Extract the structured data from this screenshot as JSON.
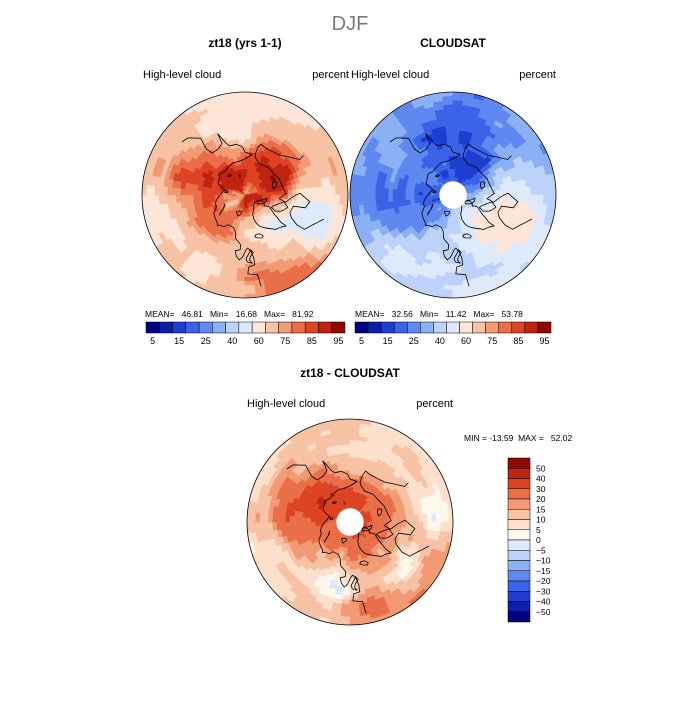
{
  "figure": {
    "title": "DJF"
  },
  "palette": {
    "abs": [
      "#000080",
      "#0d1fa6",
      "#1e3ed2",
      "#3a63e8",
      "#5f88f0",
      "#8cb0f5",
      "#bcd2fa",
      "#deeafc",
      "#fde6d8",
      "#f8c3a5",
      "#f29a73",
      "#ea6e48",
      "#dc4424",
      "#c02410",
      "#8c0c05"
    ],
    "diff": [
      "#000080",
      "#0d1fa6",
      "#1e3ed2",
      "#3a63e8",
      "#5f88f0",
      "#8cb0f5",
      "#bcd2fa",
      "#deeafc",
      "#fff6ec",
      "#fde0cc",
      "#f8c3a5",
      "#f29a73",
      "#ea6e48",
      "#dc4424",
      "#c02410",
      "#8c0c05"
    ],
    "coast": "#000000"
  },
  "chart_data": [
    {
      "type": "heatmap",
      "title": "zt18 (yrs 1-1)",
      "variable": "High-level cloud",
      "units": "percent",
      "stats": {
        "mean_label": "MEAN=",
        "mean": "46.81",
        "min_label": "Min=",
        "min": "16.68",
        "max_label": "Max=",
        "max": "81.92"
      },
      "colorbar_ticks": [
        "5",
        "15",
        "25",
        "40",
        "60",
        "75",
        "85",
        "95"
      ],
      "projection": "north-polar-stereographic",
      "field": {
        "base": 45,
        "zonal": [
          [
            0,
            20
          ],
          [
            1,
            8
          ],
          [
            2,
            6
          ],
          [
            3,
            -4
          ]
        ],
        "blobs": [
          {
            "lon": 230,
            "lat": 72,
            "sigma": 14,
            "amp": 32
          },
          {
            "lon": 110,
            "lat": 60,
            "sigma": 16,
            "amp": 22
          },
          {
            "lon": 55,
            "lat": 68,
            "sigma": 12,
            "amp": 14
          },
          {
            "lon": 290,
            "lat": 48,
            "sigma": 13,
            "amp": -34
          },
          {
            "lon": 330,
            "lat": 72,
            "sigma": 12,
            "amp": -22
          },
          {
            "lon": 160,
            "lat": 45,
            "sigma": 14,
            "amp": -12
          },
          {
            "lon": 20,
            "lat": 45,
            "sigma": 12,
            "amp": -10
          },
          {
            "lon": 200,
            "lat": 55,
            "sigma": 10,
            "amp": 10
          }
        ],
        "noise": 6,
        "seed": 11
      }
    },
    {
      "type": "heatmap",
      "title": "CLOUDSAT",
      "variable": "High-level cloud",
      "units": "percent",
      "stats": {
        "mean_label": "MEAN=",
        "mean": "32.56",
        "min_label": "Min=",
        "min": "11.42",
        "max_label": "Max=",
        "max": "53.78"
      },
      "colorbar_ticks": [
        "5",
        "15",
        "25",
        "40",
        "60",
        "75",
        "85",
        "95"
      ],
      "projection": "north-polar-stereographic",
      "pole_mask_lat": 82,
      "field": {
        "base": 30,
        "zonal": [
          [
            1,
            6
          ],
          [
            2,
            5
          ]
        ],
        "blobs": [
          {
            "lon": 290,
            "lat": 55,
            "sigma": 14,
            "amp": 20
          },
          {
            "lon": 40,
            "lat": 40,
            "sigma": 15,
            "amp": 15
          },
          {
            "lon": 170,
            "lat": 55,
            "sigma": 15,
            "amp": -12
          },
          {
            "lon": 80,
            "lat": 62,
            "sigma": 15,
            "amp": -9
          },
          {
            "lon": 220,
            "lat": 75,
            "sigma": 12,
            "amp": -10
          }
        ],
        "noise": 5,
        "seed": 23
      }
    },
    {
      "type": "heatmap",
      "title": "zt18 - CLOUDSAT",
      "variable": "High-level cloud",
      "units": "percent",
      "stats": {
        "min_label": "MIN =",
        "min": "-13.59",
        "max_label": "MAX =",
        "max": "52.02"
      },
      "colorbar_ticks": [
        "50",
        "40",
        "30",
        "20",
        "15",
        "10",
        "5",
        "0",
        "−5",
        "−10",
        "−15",
        "−20",
        "−30",
        "−40",
        "−50"
      ],
      "projection": "north-polar-stereographic",
      "pole_mask_lat": 82,
      "field": {
        "base": 12,
        "zonal": [
          [
            1,
            6
          ],
          [
            2,
            4
          ]
        ],
        "blobs": [
          {
            "lon": 100,
            "lat": 62,
            "sigma": 16,
            "amp": 22
          },
          {
            "lon": 220,
            "lat": 74,
            "sigma": 12,
            "amp": 18
          },
          {
            "lon": 140,
            "lat": 70,
            "sigma": 12,
            "amp": 14
          },
          {
            "lon": 310,
            "lat": 50,
            "sigma": 10,
            "amp": -16
          },
          {
            "lon": 10,
            "lat": 52,
            "sigma": 8,
            "amp": -14
          },
          {
            "lon": 265,
            "lat": 42,
            "sigma": 8,
            "amp": -12
          }
        ],
        "noise": 5,
        "seed": 37
      }
    }
  ],
  "coastlines": {
    "greenland": [
      [
        307,
        60
      ],
      [
        312,
        62
      ],
      [
        318,
        63
      ],
      [
        322,
        65
      ],
      [
        330,
        68
      ],
      [
        335,
        70
      ],
      [
        338,
        72
      ],
      [
        340,
        75
      ],
      [
        338,
        78
      ],
      [
        330,
        80
      ],
      [
        320,
        82
      ],
      [
        305,
        83
      ],
      [
        295,
        82
      ],
      [
        290,
        80
      ],
      [
        292,
        78
      ],
      [
        300,
        77
      ],
      [
        297,
        76
      ],
      [
        296,
        74
      ],
      [
        300,
        72
      ],
      [
        303,
        70
      ],
      [
        305,
        67
      ],
      [
        307,
        64
      ]
    ],
    "north_america": [
      [
        236,
        49
      ],
      [
        237,
        52
      ],
      [
        227,
        57
      ],
      [
        222,
        59
      ],
      [
        213,
        60
      ],
      [
        203,
        60
      ],
      [
        197,
        59
      ],
      [
        195,
        62
      ],
      [
        194,
        66
      ],
      [
        197,
        68
      ],
      [
        205,
        70
      ],
      [
        220,
        69
      ],
      [
        235,
        69
      ],
      [
        245,
        68
      ],
      [
        250,
        68
      ],
      [
        262,
        67
      ],
      [
        268,
        66
      ],
      [
        276,
        70
      ],
      [
        280,
        66
      ],
      [
        272,
        62
      ],
      [
        268,
        58
      ],
      [
        276,
        52
      ],
      [
        282,
        54
      ],
      [
        283,
        61
      ],
      [
        291,
        62
      ],
      [
        296,
        60
      ],
      [
        300,
        55
      ],
      [
        300,
        50
      ],
      [
        294,
        47
      ],
      [
        291,
        45
      ],
      [
        287,
        42
      ]
    ],
    "eurasia": [
      [
        350,
        36
      ],
      [
        351,
        43
      ],
      [
        358,
        44
      ],
      [
        357,
        48
      ],
      [
        352,
        49
      ],
      [
        352,
        53
      ],
      [
        354,
        57
      ],
      [
        357,
        59
      ],
      [
        359,
        58
      ],
      [
        2,
        54
      ],
      [
        5,
        52
      ],
      [
        8,
        54
      ],
      [
        10,
        57
      ],
      [
        5,
        58
      ],
      [
        5,
        61
      ],
      [
        12,
        64
      ],
      [
        15,
        68
      ],
      [
        20,
        70
      ],
      [
        30,
        70
      ],
      [
        33,
        68
      ],
      [
        40,
        67
      ],
      [
        42,
        66
      ],
      [
        44,
        67
      ],
      [
        52,
        68
      ],
      [
        60,
        69
      ],
      [
        68,
        72
      ],
      [
        73,
        72
      ],
      [
        80,
        73
      ],
      [
        88,
        75
      ],
      [
        100,
        77
      ],
      [
        104,
        78
      ],
      [
        113,
        73
      ],
      [
        130,
        71
      ],
      [
        140,
        72
      ],
      [
        150,
        71
      ],
      [
        160,
        70
      ],
      [
        170,
        70
      ],
      [
        180,
        69
      ],
      [
        190,
        66
      ],
      [
        180,
        65
      ],
      [
        177,
        62
      ],
      [
        170,
        60
      ],
      [
        163,
        60
      ],
      [
        160,
        58
      ],
      [
        156,
        51
      ],
      [
        156,
        57
      ],
      [
        150,
        59
      ],
      [
        142,
        59
      ],
      [
        140,
        55
      ],
      [
        142,
        48
      ],
      [
        135,
        43
      ],
      [
        130,
        42
      ]
    ],
    "svalbard": [
      [
        11,
        79
      ],
      [
        18,
        77
      ],
      [
        22,
        78
      ],
      [
        27,
        79
      ],
      [
        20,
        80
      ],
      [
        12,
        80
      ]
    ],
    "novaya_zemlya": [
      [
        52,
        71
      ],
      [
        55,
        73
      ],
      [
        58,
        75
      ],
      [
        66,
        77
      ],
      [
        60,
        76
      ],
      [
        56,
        74
      ],
      [
        53,
        72
      ]
    ],
    "baffin": [
      [
        280,
        67
      ],
      [
        285,
        70
      ],
      [
        290,
        72
      ],
      [
        295,
        73
      ],
      [
        298,
        70
      ],
      [
        294,
        67
      ],
      [
        292,
        66
      ],
      [
        286,
        64
      ]
    ],
    "ellesmere": [
      [
        278,
        77
      ],
      [
        285,
        79
      ],
      [
        290,
        81
      ],
      [
        300,
        82
      ],
      [
        305,
        81
      ],
      [
        295,
        78
      ],
      [
        285,
        77
      ]
    ],
    "victoria": [
      [
        248,
        70
      ],
      [
        255,
        71
      ],
      [
        258,
        73
      ],
      [
        250,
        73
      ],
      [
        245,
        72
      ]
    ],
    "iceland": [
      [
        336,
        64
      ],
      [
        340,
        66
      ],
      [
        345,
        66
      ],
      [
        347,
        65
      ],
      [
        344,
        64
      ],
      [
        338,
        63
      ]
    ],
    "britain": [
      [
        354,
        50
      ],
      [
        358,
        51
      ],
      [
        359,
        53
      ],
      [
        357,
        55
      ],
      [
        355,
        57
      ],
      [
        354,
        58
      ],
      [
        352,
        56
      ],
      [
        355,
        54
      ],
      [
        356,
        52
      ]
    ],
    "new_siberian": [
      [
        137,
        75
      ],
      [
        142,
        75
      ],
      [
        146,
        76
      ],
      [
        140,
        76
      ]
    ],
    "severnaya_zemlya": [
      [
        96,
        79
      ],
      [
        100,
        80
      ],
      [
        104,
        79
      ],
      [
        98,
        78
      ]
    ]
  },
  "panels": [
    {
      "title": "zt18 (yrs 1-1)",
      "left_label": "High-level cloud",
      "right_label": "percent",
      "stats_text": "MEAN=   46.81   Min=   16.68   Max=   81.92",
      "ticks": [
        "5",
        "15",
        "25",
        "40",
        "60",
        "75",
        "85",
        "95"
      ]
    },
    {
      "title": "CLOUDSAT",
      "left_label": "High-level cloud",
      "right_label": "percent",
      "stats_text": "MEAN=   32.56   Min=   11.42   Max=   53.78",
      "ticks": [
        "5",
        "15",
        "25",
        "40",
        "60",
        "75",
        "85",
        "95"
      ]
    },
    {
      "title": "zt18 - CLOUDSAT",
      "left_label": "High-level cloud",
      "right_label": "percent",
      "stats_text": "MIN = -13.59  MAX =   52.02",
      "ticks": [
        "50",
        "40",
        "30",
        "20",
        "15",
        "10",
        "5",
        "0",
        "−5",
        "−10",
        "−15",
        "−20",
        "−30",
        "−40",
        "−50"
      ]
    }
  ]
}
